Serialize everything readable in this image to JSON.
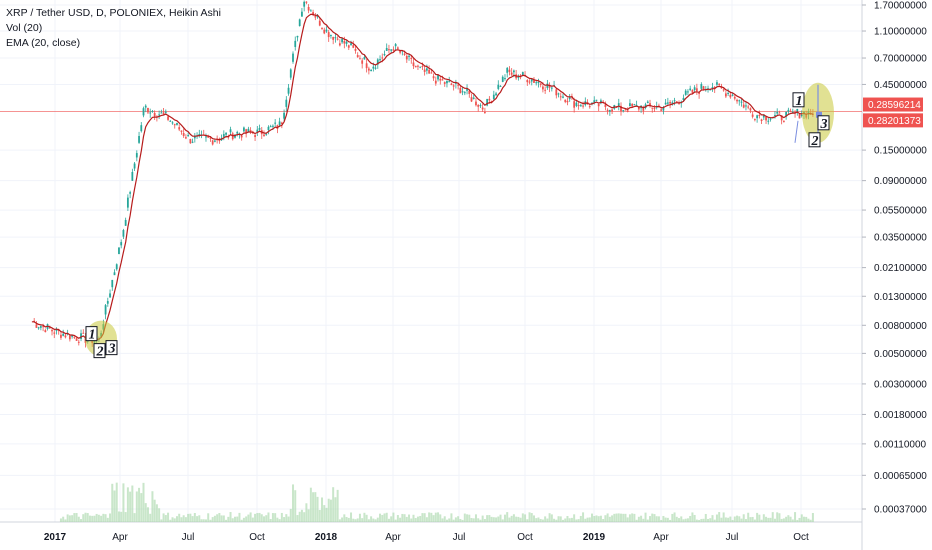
{
  "legend": {
    "title": "XRP / Tether USD, D, POLONIEX, Heikin Ashi",
    "vol": "Vol (20)",
    "ema": "EMA (20, close)"
  },
  "colors": {
    "up": "#26a69a",
    "down": "#ef5350",
    "ema": "#b71c1c",
    "volume": "#a5d6a7",
    "price_line": "#ef5350",
    "highlight": "#c9c93a",
    "arrow": "#7b8ee0"
  },
  "chart_data": {
    "type": "candlestick",
    "y_scale": "log",
    "y_ticks": [
      "1.70000000",
      "1.10000000",
      "0.70000000",
      "0.45000000",
      "0.15000000",
      "0.09000000",
      "0.05500000",
      "0.03500000",
      "0.02100000",
      "0.01300000",
      "0.00800000",
      "0.00500000",
      "0.00300000",
      "0.00180000",
      "0.00110000",
      "0.00065000",
      "0.00037000"
    ],
    "y_tick_values": [
      1.7,
      1.1,
      0.7,
      0.45,
      0.15,
      0.09,
      0.055,
      0.035,
      0.021,
      0.013,
      0.008,
      0.005,
      0.003,
      0.0018,
      0.0011,
      0.00065,
      0.00037
    ],
    "x_ticks": [
      "2017",
      "Apr",
      "Jul",
      "Oct",
      "2018",
      "Apr",
      "Jul",
      "Oct",
      "2019",
      "Apr",
      "Jul",
      "Oct"
    ],
    "x_bold": [
      "2017",
      "2018",
      "2019"
    ],
    "price_labels": [
      {
        "text": "0.28596214",
        "value": 0.28596214
      },
      {
        "text": "0.28201373",
        "value": 0.28201373
      }
    ],
    "price_path": [
      {
        "t": "2016-12",
        "v": 0.0085
      },
      {
        "t": "2017-01",
        "v": 0.0072
      },
      {
        "t": "2017-02",
        "v": 0.0065
      },
      {
        "t": "2017-03",
        "v": 0.0062
      },
      {
        "t": "2017-04",
        "v": 0.035
      },
      {
        "t": "2017-05",
        "v": 0.31
      },
      {
        "t": "2017-06",
        "v": 0.26
      },
      {
        "t": "2017-07",
        "v": 0.18
      },
      {
        "t": "2017-08",
        "v": 0.18
      },
      {
        "t": "2017-09",
        "v": 0.2
      },
      {
        "t": "2017-10",
        "v": 0.2
      },
      {
        "t": "2017-11",
        "v": 0.23
      },
      {
        "t": "2017-12",
        "v": 1.9
      },
      {
        "t": "2018-01",
        "v": 1.1
      },
      {
        "t": "2018-02",
        "v": 0.85
      },
      {
        "t": "2018-03",
        "v": 0.6
      },
      {
        "t": "2018-04",
        "v": 0.85
      },
      {
        "t": "2018-05",
        "v": 0.6
      },
      {
        "t": "2018-06",
        "v": 0.48
      },
      {
        "t": "2018-07",
        "v": 0.42
      },
      {
        "t": "2018-08",
        "v": 0.3
      },
      {
        "t": "2018-09",
        "v": 0.55
      },
      {
        "t": "2018-10",
        "v": 0.5
      },
      {
        "t": "2018-11",
        "v": 0.42
      },
      {
        "t": "2018-12",
        "v": 0.33
      },
      {
        "t": "2019-01",
        "v": 0.32
      },
      {
        "t": "2019-02",
        "v": 0.3
      },
      {
        "t": "2019-03",
        "v": 0.31
      },
      {
        "t": "2019-04",
        "v": 0.31
      },
      {
        "t": "2019-05",
        "v": 0.38
      },
      {
        "t": "2019-06",
        "v": 0.45
      },
      {
        "t": "2019-07",
        "v": 0.38
      },
      {
        "t": "2019-08",
        "v": 0.27
      },
      {
        "t": "2019-09",
        "v": 0.26
      },
      {
        "t": "2019-10",
        "v": 0.28
      }
    ],
    "annotations": [
      {
        "labels": [
          "1",
          "2",
          "3"
        ],
        "where": "2017-03"
      },
      {
        "labels": [
          "1",
          "2",
          "3"
        ],
        "where": "2019-10"
      }
    ]
  }
}
